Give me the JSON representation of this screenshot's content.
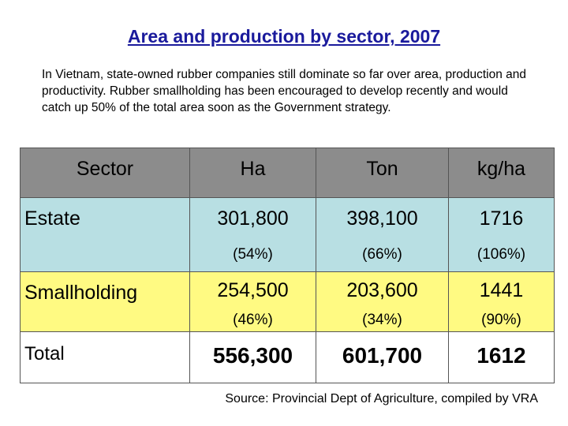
{
  "title": "Area and production by sector, 2007",
  "intro": "In Vietnam, state-owned rubber companies still dominate so far over area, production and productivity. Rubber smallholding has been encouraged to develop recently and would catch up 50% of the total area soon as the Government strategy.",
  "table": {
    "headers": [
      "Sector",
      "Ha",
      "Ton",
      "kg/ha"
    ],
    "rows": [
      {
        "sector": "Estate",
        "ha": "301,800",
        "ha_pct": "(54%)",
        "ton": "398,100",
        "ton_pct": "(66%)",
        "kgha": "1716",
        "kgha_pct": "(106%)",
        "color": "#b8dfe3"
      },
      {
        "sector": "Smallholding",
        "ha": "254,500",
        "ha_pct": "(46%)",
        "ton": "203,600",
        "ton_pct": "(34%)",
        "kgha": "1441",
        "kgha_pct": "(90%)",
        "color": "#fffa82"
      },
      {
        "sector": "Total",
        "ha": "556,300",
        "ton": "601,700",
        "kgha": "1612",
        "color": "#ffffff"
      }
    ],
    "header_color": "#8c8c8c"
  },
  "source": "Source: Provincial Dept of Agriculture, compiled by VRA",
  "title_color": "#1a1a9c"
}
